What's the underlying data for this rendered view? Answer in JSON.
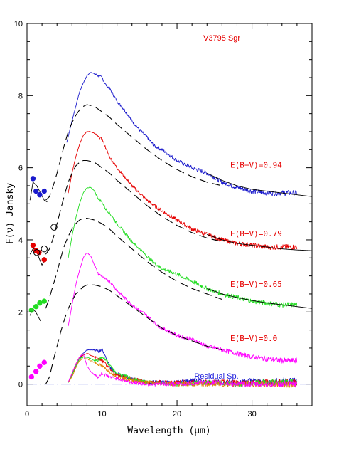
{
  "chart_data": {
    "type": "line",
    "title": "V3795 Sgr",
    "xlabel": "Wavelength (μm)",
    "ylabel": "F(ν) Jansky",
    "xlim": [
      0,
      38
    ],
    "ylim": [
      -0.6,
      10
    ],
    "x_ticks": [
      0,
      10,
      20,
      30
    ],
    "y_ticks": [
      0,
      2,
      4,
      6,
      8,
      10
    ],
    "grid": false,
    "colors": {
      "blue": "#1a1acc",
      "red": "#e60000",
      "green": "#22dd22",
      "magenta": "#ff00ff",
      "orange": "#e08000",
      "title": "#e60000",
      "residual_label": "#2020dd",
      "baseline": "#4a5ae0"
    },
    "annotations": [
      {
        "text": "E(B−V)=0.94",
        "x": 27.1,
        "y": 6.0,
        "color": "#e60000"
      },
      {
        "text": "E(B−V)=0.79",
        "x": 27.1,
        "y": 4.1,
        "color": "#e60000"
      },
      {
        "text": "E(B−V)=0.65",
        "x": 27.1,
        "y": 2.7,
        "color": "#e60000"
      },
      {
        "text": "E(B−V)=0.0",
        "x": 27.1,
        "y": 1.2,
        "color": "#e60000"
      },
      {
        "text": "Residual Sp.",
        "x": 22.3,
        "y": 0.15,
        "color": "#2020dd"
      }
    ],
    "series": [
      {
        "color": "#1a1acc",
        "style": "spectrum",
        "x": [
          5.3,
          6.0,
          6.5,
          7.0,
          7.5,
          8.0,
          8.5,
          9.0,
          9.5,
          10.0,
          10.5,
          11.0,
          12.0,
          13.0,
          14.0,
          15.0,
          16.0,
          17.0,
          18.0,
          20.0,
          22.0,
          24.0,
          26.0,
          28.0,
          30.0,
          32.0,
          34.0,
          36.0
        ],
        "y": [
          6.7,
          7.3,
          7.7,
          8.1,
          8.35,
          8.55,
          8.65,
          8.6,
          8.55,
          8.5,
          8.3,
          8.2,
          7.85,
          7.6,
          7.3,
          7.05,
          6.85,
          6.6,
          6.5,
          6.2,
          6.0,
          5.85,
          5.6,
          5.45,
          5.35,
          5.3,
          5.3,
          5.3
        ]
      },
      {
        "color": "#e60000",
        "style": "spectrum",
        "x": [
          5.5,
          6.0,
          6.5,
          7.0,
          7.5,
          8.0,
          8.5,
          9.0,
          9.5,
          10.0,
          10.5,
          11.0,
          12.0,
          13.0,
          14.0,
          15.0,
          16.0,
          17.0,
          18.0,
          20.0,
          22.0,
          24.0,
          26.0,
          28.0,
          30.0,
          32.0,
          34.0,
          36.0
        ],
        "y": [
          5.3,
          5.85,
          6.3,
          6.65,
          6.9,
          7.0,
          7.0,
          6.95,
          6.85,
          6.8,
          6.55,
          6.3,
          6.0,
          5.75,
          5.5,
          5.3,
          5.1,
          4.95,
          4.8,
          4.55,
          4.3,
          4.15,
          4.0,
          3.9,
          3.85,
          3.8,
          3.8,
          3.8
        ]
      },
      {
        "color": "#22dd22",
        "style": "spectrum",
        "x": [
          5.5,
          6.0,
          6.5,
          7.0,
          7.5,
          8.0,
          8.5,
          9.0,
          9.5,
          10.0,
          10.5,
          11.0,
          12.0,
          13.0,
          14.0,
          15.0,
          16.0,
          17.0,
          18.0,
          20.0,
          22.0,
          24.0,
          26.0,
          28.0,
          30.0,
          32.0,
          34.0,
          36.0
        ],
        "y": [
          3.5,
          4.1,
          4.6,
          5.0,
          5.3,
          5.45,
          5.45,
          5.35,
          5.15,
          5.05,
          4.85,
          4.75,
          4.45,
          4.2,
          3.95,
          3.75,
          3.55,
          3.35,
          3.2,
          3.05,
          2.85,
          2.65,
          2.5,
          2.4,
          2.3,
          2.25,
          2.2,
          2.2
        ]
      },
      {
        "color": "#ff00ff",
        "style": "spectrum",
        "x": [
          5.5,
          6.0,
          6.5,
          7.0,
          7.5,
          8.0,
          8.5,
          9.0,
          9.5,
          10.0,
          10.5,
          11.0,
          12.0,
          13.0,
          14.0,
          15.0,
          16.0,
          17.0,
          18.0,
          20.0,
          22.0,
          24.0,
          26.0,
          28.0,
          30.0,
          32.0,
          34.0,
          36.0
        ],
        "y": [
          1.6,
          2.2,
          2.75,
          3.15,
          3.5,
          3.65,
          3.55,
          3.3,
          3.05,
          3.0,
          2.9,
          2.85,
          2.6,
          2.4,
          2.2,
          2.05,
          1.9,
          1.7,
          1.55,
          1.35,
          1.25,
          1.05,
          0.95,
          0.85,
          0.75,
          0.7,
          0.65,
          0.65
        ]
      },
      {
        "style": "dashed-model",
        "color": "#000000",
        "x": [
          2.5,
          3.0,
          3.5,
          4.0,
          4.5,
          5.0,
          5.5,
          6.0,
          6.5,
          7.0,
          7.5,
          8.0,
          9.0,
          10.0,
          11.0,
          12.0,
          14.0,
          16.0,
          18.0,
          20.0,
          22.0,
          24.0,
          26.0
        ],
        "y": [
          5.1,
          5.2,
          5.5,
          5.85,
          6.25,
          6.65,
          7.0,
          7.25,
          7.45,
          7.6,
          7.7,
          7.75,
          7.7,
          7.55,
          7.4,
          7.2,
          6.85,
          6.5,
          6.2,
          5.95,
          5.75,
          5.6,
          5.5
        ]
      },
      {
        "style": "dashed-model",
        "color": "#000000",
        "x": [
          2.5,
          3.0,
          3.5,
          4.0,
          4.5,
          5.0,
          5.5,
          6.0,
          6.5,
          7.0,
          7.5,
          8.0,
          9.0,
          10.0,
          11.0,
          12.0,
          14.0,
          16.0,
          18.0,
          20.0,
          22.0,
          24.0,
          26.0
        ],
        "y": [
          3.6,
          3.75,
          4.05,
          4.45,
          4.85,
          5.25,
          5.6,
          5.85,
          6.05,
          6.15,
          6.2,
          6.2,
          6.15,
          6.0,
          5.85,
          5.65,
          5.3,
          4.95,
          4.65,
          4.4,
          4.2,
          4.05,
          3.95
        ]
      },
      {
        "style": "dashed-model",
        "color": "#000000",
        "x": [
          2.5,
          3.0,
          3.5,
          4.0,
          4.5,
          5.0,
          5.5,
          6.0,
          6.5,
          7.0,
          7.5,
          8.0,
          9.0,
          10.0,
          11.0,
          12.0,
          14.0,
          16.0,
          18.0,
          20.0,
          22.0,
          24.0,
          26.0
        ],
        "y": [
          2.1,
          2.4,
          2.75,
          3.1,
          3.5,
          3.85,
          4.1,
          4.3,
          4.45,
          4.55,
          4.6,
          4.6,
          4.55,
          4.45,
          4.3,
          4.1,
          3.75,
          3.4,
          3.1,
          2.85,
          2.65,
          2.5,
          2.35
        ]
      },
      {
        "style": "dashed-model",
        "color": "#000000",
        "x": [
          2.5,
          3.0,
          3.5,
          4.0,
          4.5,
          5.0,
          5.5,
          6.0,
          6.5,
          7.0,
          7.5,
          8.0,
          9.0,
          10.0,
          11.0,
          12.0,
          14.0,
          16.0,
          18.0,
          20.0,
          22.0,
          24.0,
          26.0
        ],
        "y": [
          0.0,
          0.2,
          0.65,
          1.05,
          1.45,
          1.8,
          2.1,
          2.3,
          2.5,
          2.6,
          2.7,
          2.75,
          2.75,
          2.7,
          2.6,
          2.45,
          2.15,
          1.85,
          1.55,
          1.35,
          1.2,
          1.05,
          0.95
        ]
      },
      {
        "style": "solid-model",
        "color": "#000000",
        "x": [
          24.0,
          26.0,
          28.0,
          30.0,
          32.0,
          34.0,
          36.0,
          38.0
        ],
        "y": [
          5.85,
          5.65,
          5.5,
          5.4,
          5.35,
          5.3,
          5.25,
          5.2
        ]
      },
      {
        "style": "solid-model",
        "color": "#000000",
        "x": [
          24.0,
          26.0,
          28.0,
          30.0,
          32.0,
          34.0,
          36.0,
          38.0
        ],
        "y": [
          4.15,
          4.0,
          3.9,
          3.85,
          3.8,
          3.75,
          3.72,
          3.7
        ]
      },
      {
        "style": "solid-model",
        "color": "#000000",
        "x": [
          24.0,
          26.0,
          28.0,
          30.0,
          32.0,
          34.0,
          36.0,
          38.0
        ],
        "y": [
          2.65,
          2.5,
          2.4,
          2.32,
          2.25,
          2.2,
          2.15,
          2.1
        ]
      },
      {
        "style": "solid-model",
        "color": "#000000",
        "x": [
          0.4,
          0.8,
          1.3,
          1.8,
          2.3,
          2.7
        ],
        "y": [
          5.1,
          5.6,
          5.5,
          5.3,
          5.1,
          5.05
        ]
      },
      {
        "style": "solid-model",
        "color": "#000000",
        "x": [
          0.4,
          0.8,
          1.2,
          1.6,
          2.0,
          2.4
        ],
        "y": [
          3.6,
          3.75,
          3.75,
          3.5,
          3.3,
          3.45
        ]
      },
      {
        "style": "solid-model",
        "color": "#000000",
        "x": [
          0.4,
          0.8,
          1.3,
          1.8
        ],
        "y": [
          1.9,
          2.1,
          1.95,
          1.75
        ]
      },
      {
        "name": "Residual Sp.",
        "color": "#1a1acc",
        "style": "residual",
        "x": [
          5.5,
          6.0,
          6.5,
          7.0,
          7.5,
          8.0,
          8.5,
          9.0,
          9.5,
          10.0,
          10.5,
          11.0,
          11.5,
          12.0,
          13.0,
          14.0,
          15.0,
          16.0,
          18.0,
          20.0,
          22.0,
          24.0,
          26.0,
          28.0,
          30.0,
          32.0,
          34.0,
          36.0
        ],
        "y": [
          0.05,
          0.25,
          0.5,
          0.7,
          0.85,
          0.95,
          0.95,
          0.95,
          0.9,
          0.95,
          0.75,
          0.5,
          0.35,
          0.3,
          0.2,
          0.15,
          0.1,
          0.05,
          0.05,
          0.05,
          0.1,
          0.05,
          0.05,
          0.05,
          0.1,
          0.05,
          0.1,
          0.1
        ]
      },
      {
        "color": "#e60000",
        "style": "residual",
        "x": [
          5.5,
          6.0,
          6.5,
          7.0,
          7.5,
          8.0,
          8.5,
          9.0,
          9.5,
          10.0,
          10.5,
          11.0,
          12.0,
          14.0,
          16.0,
          20.0,
          24.0,
          28.0,
          32.0,
          36.0
        ],
        "y": [
          0.05,
          0.3,
          0.55,
          0.75,
          0.8,
          0.85,
          0.8,
          0.75,
          0.7,
          0.65,
          0.55,
          0.4,
          0.25,
          0.15,
          0.05,
          0.05,
          0.05,
          0.05,
          0.05,
          0.05
        ]
      },
      {
        "color": "#22dd22",
        "style": "residual",
        "x": [
          5.5,
          6.0,
          6.5,
          7.0,
          7.5,
          8.0,
          8.5,
          9.0,
          9.5,
          10.0,
          10.5,
          11.0,
          12.0,
          14.0,
          16.0,
          20.0,
          24.0,
          28.0,
          32.0,
          36.0
        ],
        "y": [
          0.05,
          0.25,
          0.5,
          0.7,
          0.75,
          0.75,
          0.7,
          0.65,
          0.65,
          0.75,
          0.7,
          0.5,
          0.3,
          0.15,
          0.05,
          0.0,
          0.05,
          0.0,
          0.05,
          0.05
        ]
      },
      {
        "color": "#e08000",
        "style": "residual",
        "x": [
          5.5,
          6.0,
          6.5,
          7.0,
          7.5,
          8.0,
          8.5,
          9.0,
          9.5,
          10.0,
          11.0,
          12.0,
          14.0,
          16.0,
          20.0,
          24.0,
          28.0,
          32.0,
          36.0
        ],
        "y": [
          0.05,
          0.2,
          0.45,
          0.65,
          0.7,
          0.7,
          0.65,
          0.6,
          0.55,
          0.5,
          0.35,
          0.2,
          0.1,
          0.05,
          0.0,
          0.0,
          0.0,
          0.0,
          0.0
        ]
      },
      {
        "color": "#ff00ff",
        "style": "residual",
        "x": [
          5.5,
          6.0,
          6.5,
          7.0,
          7.5,
          8.0,
          8.5,
          9.0,
          9.5,
          10.0,
          10.5,
          11.0,
          12.0,
          14.0,
          16.0,
          20.0,
          24.0,
          28.0,
          32.0,
          36.0
        ],
        "y": [
          0.05,
          0.3,
          0.55,
          0.75,
          0.85,
          0.5,
          0.35,
          0.25,
          0.2,
          0.3,
          0.25,
          0.2,
          0.15,
          0.05,
          0.0,
          0.0,
          0.05,
          0.0,
          0.0,
          0.0
        ]
      }
    ],
    "points": [
      {
        "x": 0.8,
        "y": 5.7,
        "color": "#1a1acc",
        "filled": true
      },
      {
        "x": 1.2,
        "y": 5.35,
        "color": "#1a1acc",
        "filled": true
      },
      {
        "x": 1.7,
        "y": 5.25,
        "color": "#1a1acc",
        "filled": true
      },
      {
        "x": 2.3,
        "y": 5.35,
        "color": "#1a1acc",
        "filled": true
      },
      {
        "x": 0.8,
        "y": 3.85,
        "color": "#e60000",
        "filled": true
      },
      {
        "x": 1.2,
        "y": 3.7,
        "color": "#e60000",
        "filled": true
      },
      {
        "x": 1.6,
        "y": 3.65,
        "color": "#e60000",
        "filled": true
      },
      {
        "x": 2.3,
        "y": 3.45,
        "color": "#e60000",
        "filled": true
      },
      {
        "x": 1.3,
        "y": 3.65,
        "color": "#000000",
        "filled": false
      },
      {
        "x": 2.3,
        "y": 3.75,
        "color": "#000000",
        "filled": false
      },
      {
        "x": 3.6,
        "y": 4.35,
        "color": "#000000",
        "filled": false
      },
      {
        "x": 0.6,
        "y": 2.05,
        "color": "#22dd22",
        "filled": true
      },
      {
        "x": 1.2,
        "y": 2.15,
        "color": "#22dd22",
        "filled": true
      },
      {
        "x": 1.7,
        "y": 2.25,
        "color": "#22dd22",
        "filled": true
      },
      {
        "x": 2.3,
        "y": 2.3,
        "color": "#22dd22",
        "filled": true
      },
      {
        "x": 0.6,
        "y": 0.2,
        "color": "#ff00ff",
        "filled": true
      },
      {
        "x": 1.2,
        "y": 0.35,
        "color": "#ff00ff",
        "filled": true
      },
      {
        "x": 1.7,
        "y": 0.5,
        "color": "#ff00ff",
        "filled": true
      },
      {
        "x": 2.3,
        "y": 0.6,
        "color": "#ff00ff",
        "filled": true
      }
    ],
    "baseline": {
      "y": 0.0,
      "color": "#4a5ae0",
      "style": "dash-dot"
    }
  }
}
